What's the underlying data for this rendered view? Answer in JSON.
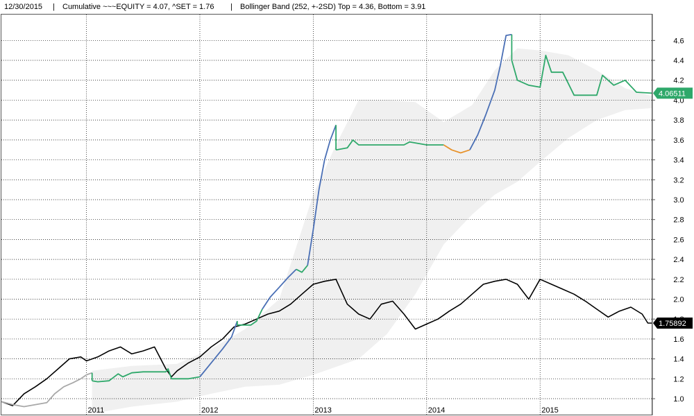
{
  "header": {
    "date": "12/30/2015",
    "sep1": "|",
    "cumulative": "Cumulative ~~~EQUITY = 4.07, ^SET = 1.76",
    "sep2": "|",
    "band": "Bollinger Band (252, +-2SD)  Top = 4.36, Bottom = 3.91"
  },
  "colors": {
    "equity_rising": "#4a6fb5",
    "equity_flat": "#2ea86a",
    "equity_dip": "#e8922a",
    "equity_early": "#a8a8a8",
    "set": "#000000",
    "band": "#f0f0f0",
    "equity_label_bg": "#2ea86a",
    "set_label_bg": "#000000"
  },
  "last_values": {
    "equity": "4.06511",
    "set": "1.75892"
  },
  "chart_data": {
    "type": "line",
    "x_axis": {
      "min": 2010.25,
      "max": 2015.99,
      "ticks": [
        {
          "x": 2011,
          "label": "2011"
        },
        {
          "x": 2012,
          "label": "2012"
        },
        {
          "x": 2013,
          "label": "2013"
        },
        {
          "x": 2014,
          "label": "2014"
        },
        {
          "x": 2015,
          "label": "2015"
        }
      ]
    },
    "y_axis": {
      "min": 0.84,
      "max": 4.86,
      "ticks": [
        1.0,
        1.2,
        1.4,
        1.6,
        1.8,
        2.0,
        2.2,
        2.4,
        2.6,
        2.8,
        3.0,
        3.2,
        3.4,
        3.6,
        3.8,
        4.0,
        4.2,
        4.4,
        4.6
      ],
      "tick_labels": [
        "1.0",
        "1.2",
        "1.4",
        "1.6",
        "1.8",
        "2.0",
        "2.2",
        "2.4",
        "2.6",
        "2.8",
        "3.0",
        "3.2",
        "3.4",
        "3.6",
        "3.8",
        "4.0",
        "4.2",
        "4.4",
        "4.6"
      ],
      "side": "right"
    },
    "grid": true,
    "bollinger_band": {
      "x": [
        2011.05,
        2011.4,
        2011.8,
        2012.1,
        2012.4,
        2012.7,
        2013.0,
        2013.2,
        2013.4,
        2013.65,
        2013.9,
        2014.15,
        2014.4,
        2014.6,
        2014.8,
        2015.0,
        2015.25,
        2015.5,
        2015.75,
        2015.99
      ],
      "top": [
        1.28,
        1.33,
        1.35,
        1.5,
        1.7,
        2.0,
        3.05,
        3.55,
        4.0,
        4.0,
        3.98,
        3.78,
        3.95,
        4.3,
        4.52,
        4.5,
        4.45,
        4.3,
        4.12,
        4.04
      ],
      "bottom": [
        0.85,
        0.92,
        0.97,
        1.05,
        1.12,
        1.14,
        1.24,
        1.32,
        1.4,
        1.65,
        2.05,
        2.55,
        2.85,
        3.05,
        3.18,
        3.38,
        3.62,
        3.8,
        3.9,
        3.92
      ]
    },
    "series": [
      {
        "name": "~~~EQUITY",
        "segments": [
          {
            "style": "early",
            "x": [
              2010.25,
              2010.35,
              2010.45,
              2010.55,
              2010.65,
              2010.72,
              2010.8,
              2010.88,
              2010.95,
              2011.0,
              2011.05
            ],
            "y": [
              0.97,
              0.94,
              0.92,
              0.94,
              0.96,
              1.05,
              1.12,
              1.16,
              1.2,
              1.24,
              1.26
            ]
          },
          {
            "style": "flat",
            "x": [
              2011.05,
              2011.1,
              2011.2,
              2011.28,
              2011.32,
              2011.4,
              2011.5,
              2011.6,
              2011.7,
              2011.72,
              2011.75,
              2011.8,
              2011.9,
              2012.0
            ],
            "y": [
              1.18,
              1.17,
              1.18,
              1.25,
              1.22,
              1.26,
              1.27,
              1.27,
              1.27,
              1.3,
              1.2,
              1.2,
              1.2,
              1.22
            ]
          },
          {
            "style": "rising",
            "x": [
              2012.0,
              2012.1,
              2012.2,
              2012.28,
              2012.33
            ],
            "y": [
              1.22,
              1.36,
              1.5,
              1.62,
              1.78
            ]
          },
          {
            "style": "flat",
            "x": [
              2012.33,
              2012.38,
              2012.45,
              2012.5,
              2012.55
            ],
            "y": [
              1.74,
              1.74,
              1.74,
              1.78,
              1.9
            ]
          },
          {
            "style": "rising",
            "x": [
              2012.55,
              2012.62,
              2012.7,
              2012.78,
              2012.85
            ],
            "y": [
              1.9,
              2.02,
              2.12,
              2.22,
              2.3
            ]
          },
          {
            "style": "flat",
            "x": [
              2012.85,
              2012.9,
              2012.95
            ],
            "y": [
              2.3,
              2.27,
              2.34
            ]
          },
          {
            "style": "rising",
            "x": [
              2012.95,
              2013.0,
              2013.05,
              2013.1,
              2013.15,
              2013.2
            ],
            "y": [
              2.34,
              2.7,
              3.1,
              3.4,
              3.6,
              3.75
            ]
          },
          {
            "style": "flat",
            "x": [
              2013.2,
              2013.3,
              2013.35,
              2013.4,
              2013.5,
              2013.8,
              2013.85,
              2014.0,
              2014.15
            ],
            "y": [
              3.5,
              3.52,
              3.6,
              3.55,
              3.55,
              3.55,
              3.58,
              3.55,
              3.55
            ]
          },
          {
            "style": "dip",
            "x": [
              2014.15,
              2014.22,
              2014.3,
              2014.38
            ],
            "y": [
              3.55,
              3.5,
              3.47,
              3.5
            ]
          },
          {
            "style": "rising",
            "x": [
              2014.38,
              2014.45,
              2014.52,
              2014.6,
              2014.65
            ],
            "y": [
              3.5,
              3.65,
              3.85,
              4.1,
              4.35
            ]
          },
          {
            "style": "rising",
            "x": [
              2014.65,
              2014.7,
              2014.75
            ],
            "y": [
              4.35,
              4.65,
              4.66
            ]
          },
          {
            "style": "flat",
            "x": [
              2014.75,
              2014.8,
              2014.9,
              2015.0,
              2015.05,
              2015.1,
              2015.2,
              2015.3,
              2015.5,
              2015.55,
              2015.65,
              2015.75,
              2015.85,
              2015.99
            ],
            "y": [
              4.4,
              4.2,
              4.15,
              4.13,
              4.45,
              4.28,
              4.28,
              4.05,
              4.05,
              4.25,
              4.15,
              4.2,
              4.08,
              4.07
            ]
          }
        ]
      },
      {
        "name": "^SET",
        "x": [
          2010.25,
          2010.35,
          2010.45,
          2010.55,
          2010.65,
          2010.75,
          2010.85,
          2010.95,
          2011.0,
          2011.1,
          2011.2,
          2011.3,
          2011.4,
          2011.5,
          2011.6,
          2011.7,
          2011.75,
          2011.8,
          2011.9,
          2012.0,
          2012.1,
          2012.2,
          2012.3,
          2012.4,
          2012.5,
          2012.6,
          2012.7,
          2012.8,
          2012.9,
          2013.0,
          2013.1,
          2013.2,
          2013.3,
          2013.4,
          2013.5,
          2013.6,
          2013.7,
          2013.8,
          2013.9,
          2014.0,
          2014.1,
          2014.2,
          2014.3,
          2014.4,
          2014.5,
          2014.6,
          2014.7,
          2014.8,
          2014.9,
          2015.0,
          2015.1,
          2015.2,
          2015.3,
          2015.4,
          2015.5,
          2015.6,
          2015.7,
          2015.8,
          2015.9,
          2015.95,
          2015.99
        ],
        "y": [
          0.97,
          0.93,
          1.05,
          1.12,
          1.2,
          1.3,
          1.4,
          1.42,
          1.38,
          1.42,
          1.48,
          1.52,
          1.45,
          1.48,
          1.52,
          1.3,
          1.22,
          1.28,
          1.36,
          1.42,
          1.52,
          1.6,
          1.72,
          1.75,
          1.8,
          1.85,
          1.88,
          1.95,
          2.05,
          2.15,
          2.18,
          2.2,
          1.95,
          1.85,
          1.8,
          1.95,
          1.98,
          1.85,
          1.7,
          1.75,
          1.8,
          1.88,
          1.95,
          2.05,
          2.15,
          2.18,
          2.2,
          2.15,
          2.0,
          2.2,
          2.15,
          2.1,
          2.05,
          1.98,
          1.9,
          1.82,
          1.88,
          1.92,
          1.85,
          1.76,
          1.76
        ]
      }
    ]
  }
}
